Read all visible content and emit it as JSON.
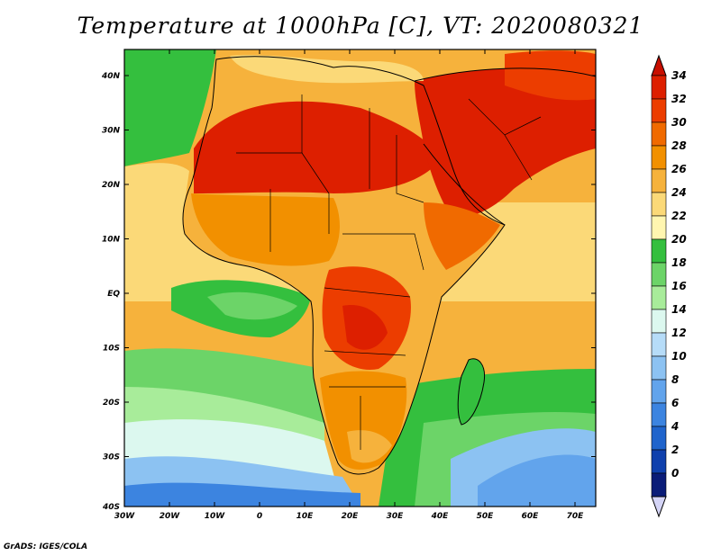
{
  "title": "Temperature at 1000hPa [C], VT: 2020080321",
  "credit": "GrADS: IGES/COLA",
  "map": {
    "variable": "Temperature at 1000hPa",
    "units": "C",
    "valid_time": "2020080321",
    "region": "Africa, Middle East and Indian Ocean",
    "lon_labels": [
      "30W",
      "20W",
      "10W",
      "0",
      "10E",
      "20E",
      "30E",
      "40E",
      "50E",
      "60E",
      "70E"
    ],
    "lat_labels": [
      "40N",
      "30N",
      "20N",
      "10N",
      "EQ",
      "10S",
      "20S",
      "30S",
      "40S"
    ]
  },
  "colorbar": {
    "labels": [
      "34",
      "32",
      "30",
      "28",
      "26",
      "24",
      "22",
      "20",
      "18",
      "16",
      "14",
      "12",
      "10",
      "8",
      "6",
      "4",
      "2",
      "0"
    ],
    "colors": [
      "#dd1f00",
      "#ec3d00",
      "#f06a00",
      "#f29000",
      "#f6b23c",
      "#fbd978",
      "#fff6b0",
      "#34bf3e",
      "#6cd468",
      "#a8ec9a",
      "#dcf8ef",
      "#b6dcf8",
      "#8cc2f2",
      "#62a4ec",
      "#3c84e0",
      "#1f64cc",
      "#0f40ad",
      "#0a1c78"
    ],
    "over_color": "#c80f00",
    "under_color": "#d4d4f6"
  }
}
